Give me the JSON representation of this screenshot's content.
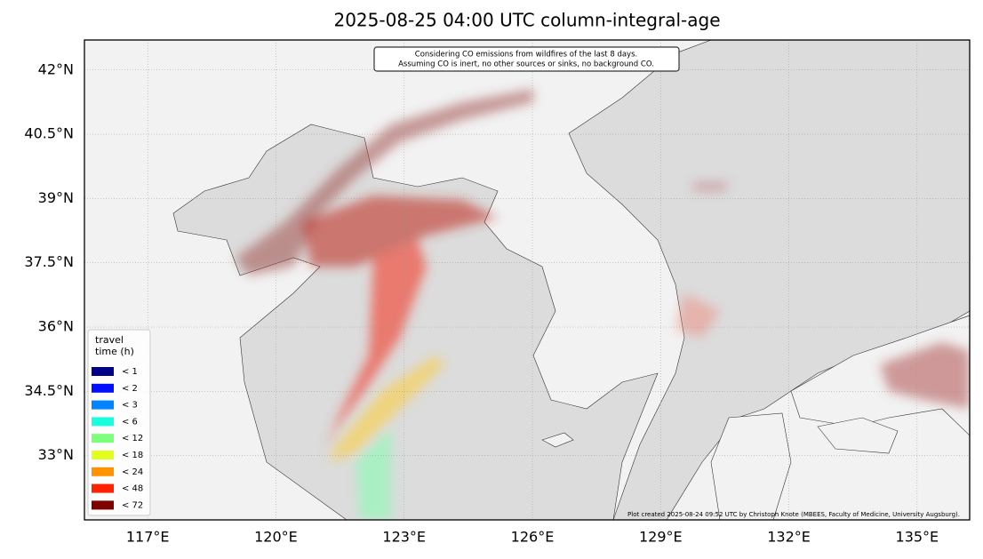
{
  "chart_data": {
    "type": "map",
    "title": "2025-08-25 04:00 UTC column-integral-age",
    "annotation": [
      "Considering CO emissions from wildfires of the last 8 days.",
      "Assuming CO is inert, no other sources or sinks, no background CO."
    ],
    "credit": "Plot created 2025-08-24 09:52 UTC by Christoph Knote (MBEES, Faculty of Medicine, University Augsburg).",
    "xlim": [
      115.52,
      136.23
    ],
    "ylim": [
      31.5,
      42.7
    ],
    "xticks": [
      {
        "value": 117,
        "label": "117°E"
      },
      {
        "value": 120,
        "label": "120°E"
      },
      {
        "value": 123,
        "label": "123°E"
      },
      {
        "value": 126,
        "label": "126°E"
      },
      {
        "value": 129,
        "label": "129°E"
      },
      {
        "value": 132,
        "label": "132°E"
      },
      {
        "value": 135,
        "label": "135°E"
      }
    ],
    "yticks": [
      {
        "value": 33,
        "label": "33°N"
      },
      {
        "value": 34.5,
        "label": "34.5°N"
      },
      {
        "value": 36,
        "label": "36°N"
      },
      {
        "value": 37.5,
        "label": "37.5°N"
      },
      {
        "value": 39,
        "label": "39°N"
      },
      {
        "value": 40.5,
        "label": "40.5°N"
      },
      {
        "value": 42,
        "label": "42°N"
      }
    ],
    "grid": true,
    "legend": {
      "title": [
        "travel",
        "time (h)"
      ],
      "items": [
        {
          "label": "<  1",
          "color": "#000088"
        },
        {
          "label": "<  2",
          "color": "#0010ff"
        },
        {
          "label": "<  3",
          "color": "#0084ff"
        },
        {
          "label": "<  6",
          "color": "#18ffde"
        },
        {
          "label": "< 12",
          "color": "#7cff7a"
        },
        {
          "label": "< 18",
          "color": "#e2ff1c"
        },
        {
          "label": "< 24",
          "color": "#ff9200"
        },
        {
          "label": "< 48",
          "color": "#ff2200"
        },
        {
          "label": "< 72",
          "color": "#800000"
        }
      ]
    }
  }
}
